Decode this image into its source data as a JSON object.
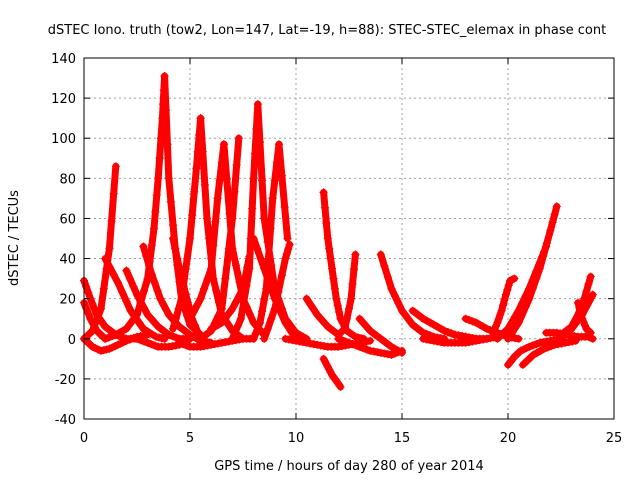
{
  "chart_data": {
    "type": "scatter",
    "title": "dSTEC Iono. truth (tow2, Lon=147, Lat=-19, h=88): STEC-STEC_elemax in phase cont",
    "xlabel": "GPS time / hours of day 280 of year 2014",
    "ylabel": "dSTEC  / TECUs",
    "xlim": [
      0,
      25
    ],
    "ylim": [
      -40,
      140
    ],
    "xticks": [
      0,
      5,
      10,
      15,
      20,
      25
    ],
    "yticks": [
      -40,
      -20,
      0,
      20,
      40,
      60,
      80,
      100,
      120,
      140
    ],
    "grid": true,
    "marker": "plus",
    "color": "#ff0000",
    "arcs": [
      {
        "x": [
          0.0,
          0.4,
          0.8,
          1.2,
          1.5
        ],
        "y": [
          0,
          4,
          15,
          45,
          86
        ]
      },
      {
        "x": [
          1.0,
          1.6,
          2.2,
          2.8,
          3.4,
          3.8
        ],
        "y": [
          40,
          28,
          14,
          5,
          1,
          0
        ]
      },
      {
        "x": [
          0.0,
          0.4,
          0.8,
          1.2,
          1.6,
          2.0,
          2.5,
          3.0
        ],
        "y": [
          0,
          -4,
          -6,
          -5,
          -3,
          -1,
          1,
          2
        ]
      },
      {
        "x": [
          0.0,
          0.3,
          0.6,
          1.0,
          1.5,
          2.0,
          2.6
        ],
        "y": [
          29,
          20,
          12,
          6,
          2,
          0,
          0
        ]
      },
      {
        "x": [
          0.0,
          0.3,
          0.6,
          1.0
        ],
        "y": [
          18,
          10,
          4,
          0
        ]
      },
      {
        "x": [
          1.0,
          1.5,
          2.0,
          2.5,
          3.0,
          3.3,
          3.5,
          3.7,
          3.8
        ],
        "y": [
          0,
          2,
          5,
          12,
          30,
          55,
          80,
          110,
          131
        ]
      },
      {
        "x": [
          3.8,
          4.0,
          4.3,
          4.6,
          5.0,
          5.5
        ],
        "y": [
          131,
          80,
          45,
          20,
          7,
          2
        ]
      },
      {
        "x": [
          2.0,
          2.5,
          3.0,
          3.5,
          4.0,
          4.5,
          5.0
        ],
        "y": [
          34,
          22,
          12,
          6,
          2,
          0,
          0
        ]
      },
      {
        "x": [
          2.8,
          3.2,
          3.6,
          4.0,
          4.5,
          5.0,
          5.5,
          6.0
        ],
        "y": [
          46,
          32,
          20,
          12,
          6,
          2,
          -1,
          -2
        ]
      },
      {
        "x": [
          2.5,
          3.0,
          3.5,
          4.0,
          4.5,
          5.0
        ],
        "y": [
          0,
          -2,
          -4,
          -4,
          -3,
          0
        ]
      },
      {
        "x": [
          4.2,
          4.6,
          5.0,
          5.3,
          5.5
        ],
        "y": [
          5,
          20,
          50,
          85,
          110
        ]
      },
      {
        "x": [
          5.5,
          5.8,
          6.1,
          6.5,
          7.0,
          7.5
        ],
        "y": [
          110,
          60,
          30,
          12,
          4,
          0
        ]
      },
      {
        "x": [
          4.2,
          4.5,
          4.8,
          5.1,
          5.5
        ],
        "y": [
          50,
          35,
          22,
          10,
          0
        ]
      },
      {
        "x": [
          5.0,
          5.5,
          6.0,
          6.3,
          6.6
        ],
        "y": [
          10,
          20,
          35,
          70,
          97
        ]
      },
      {
        "x": [
          6.6,
          7.0,
          7.5,
          8.0,
          8.5
        ],
        "y": [
          97,
          45,
          20,
          8,
          2
        ]
      },
      {
        "x": [
          5.5,
          6.0,
          6.5,
          7.0,
          7.3
        ],
        "y": [
          0,
          4,
          15,
          60,
          100
        ]
      },
      {
        "x": [
          6.0,
          6.5,
          7.0,
          7.5,
          7.8
        ],
        "y": [
          5,
          8,
          15,
          25,
          41
        ]
      },
      {
        "x": [
          4.5,
          5.0,
          5.5,
          6.0,
          6.5,
          7.0,
          7.5,
          8.0
        ],
        "y": [
          -2,
          -4,
          -4,
          -3,
          -2,
          -1,
          0,
          0
        ]
      },
      {
        "x": [
          7.0,
          7.4,
          7.8,
          8.0,
          8.2,
          8.5
        ],
        "y": [
          0,
          10,
          35,
          80,
          117,
          60
        ]
      },
      {
        "x": [
          8.5,
          9.0,
          9.5,
          10.0,
          10.5
        ],
        "y": [
          60,
          25,
          10,
          3,
          0
        ]
      },
      {
        "x": [
          8.0,
          8.3,
          8.6,
          8.9,
          9.2,
          9.6
        ],
        "y": [
          0,
          8,
          25,
          70,
          97,
          50
        ]
      },
      {
        "x": [
          8.5,
          9.0,
          9.5,
          9.7
        ],
        "y": [
          0,
          15,
          40,
          47
        ]
      },
      {
        "x": [
          8.0,
          8.5,
          9.0,
          9.5,
          10.0
        ],
        "y": [
          50,
          35,
          20,
          8,
          0
        ]
      },
      {
        "x": [
          9.5,
          10.0,
          10.5,
          11.0,
          11.5,
          12.0,
          12.5,
          13.0,
          13.5
        ],
        "y": [
          0,
          -1,
          -2,
          -3,
          -4,
          -4,
          -3,
          -2,
          -1
        ]
      },
      {
        "x": [
          10.5,
          11.0,
          11.5,
          12.0,
          12.3,
          12.6,
          12.8
        ],
        "y": [
          20,
          12,
          6,
          2,
          5,
          20,
          42
        ]
      },
      {
        "x": [
          11.3,
          11.5,
          11.7,
          11.9,
          12.1,
          12.4,
          12.8,
          13.2
        ],
        "y": [
          73,
          50,
          35,
          20,
          10,
          4,
          1,
          0
        ]
      },
      {
        "x": [
          11.3,
          11.5,
          11.7,
          11.9,
          12.1
        ],
        "y": [
          -10,
          -14,
          -18,
          -21,
          -24
        ]
      },
      {
        "x": [
          14.0,
          14.5,
          15.0,
          15.5,
          16.0,
          16.5,
          17.0
        ],
        "y": [
          42,
          25,
          14,
          7,
          3,
          1,
          0
        ]
      },
      {
        "x": [
          13.0,
          13.5,
          14.0,
          14.5,
          15.0
        ],
        "y": [
          10,
          4,
          0,
          -4,
          -7
        ]
      },
      {
        "x": [
          12.0,
          12.5,
          13.0,
          13.5,
          14.0,
          14.5,
          15.0
        ],
        "y": [
          0,
          -2,
          -4,
          -6,
          -7,
          -8,
          -6
        ]
      },
      {
        "x": [
          15.5,
          16.0,
          16.5,
          17.0,
          17.5,
          18.0,
          18.5
        ],
        "y": [
          14,
          10,
          7,
          4,
          2,
          1,
          0
        ]
      },
      {
        "x": [
          17.0,
          17.5,
          18.0,
          18.5,
          19.0,
          19.5
        ],
        "y": [
          4,
          2,
          1,
          0,
          0,
          1
        ]
      },
      {
        "x": [
          16.0,
          16.5,
          17.0,
          17.5,
          18.0,
          18.5,
          19.0
        ],
        "y": [
          0,
          -1,
          -2,
          -2,
          -2,
          -1,
          0
        ]
      },
      {
        "x": [
          18.0,
          18.5,
          19.0,
          19.5,
          20.0,
          20.5
        ],
        "y": [
          10,
          8,
          5,
          3,
          1,
          0
        ]
      },
      {
        "x": [
          19.3,
          19.5,
          19.7,
          19.9,
          20.1,
          20.3
        ],
        "y": [
          3,
          8,
          14,
          22,
          29,
          30
        ]
      },
      {
        "x": [
          19.5,
          20.0,
          20.5,
          21.0,
          21.5,
          21.8
        ],
        "y": [
          0,
          5,
          14,
          25,
          38,
          46
        ]
      },
      {
        "x": [
          20.0,
          20.5,
          21.0,
          21.5,
          22.0,
          22.3
        ],
        "y": [
          0,
          8,
          20,
          35,
          54,
          66
        ]
      },
      {
        "x": [
          20.0,
          20.3,
          20.6,
          21.0,
          21.5,
          22.0,
          22.5
        ],
        "y": [
          -13,
          -9,
          -6,
          -4,
          -2,
          -1,
          0
        ]
      },
      {
        "x": [
          20.7,
          21.2,
          21.7,
          22.2,
          22.7,
          23.2
        ],
        "y": [
          -13,
          -8,
          -5,
          -3,
          -2,
          -1
        ]
      },
      {
        "x": [
          21.8,
          22.3,
          22.8,
          23.3,
          23.8,
          24.0
        ],
        "y": [
          3,
          3,
          2,
          1,
          1,
          0
        ]
      },
      {
        "x": [
          22.5,
          23.0,
          23.3,
          23.6,
          23.9
        ],
        "y": [
          2,
          6,
          12,
          20,
          31
        ]
      },
      {
        "x": [
          23.3,
          23.5,
          23.7,
          23.9
        ],
        "y": [
          18,
          10,
          5,
          3
        ]
      },
      {
        "x": [
          22.5,
          23.0,
          23.5,
          24.0
        ],
        "y": [
          0,
          5,
          12,
          22
        ]
      }
    ]
  }
}
